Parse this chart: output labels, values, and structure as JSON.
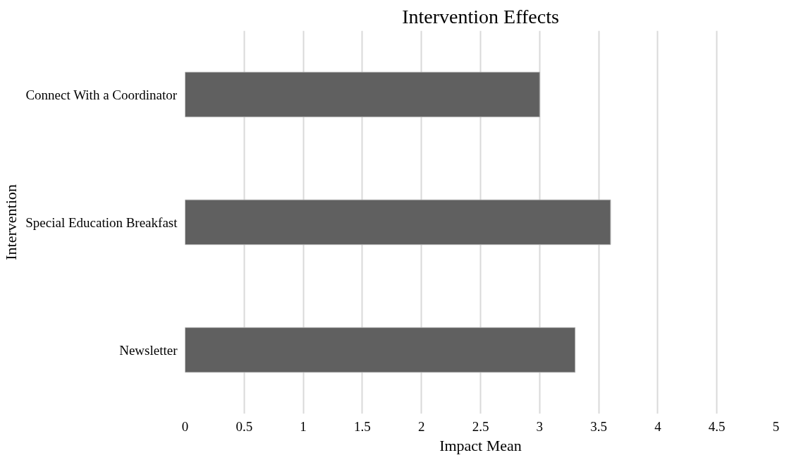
{
  "chart_data": {
    "type": "bar",
    "orientation": "horizontal",
    "title": "Intervention Effects",
    "xlabel": "Impact Mean",
    "ylabel": "Intervention",
    "categories": [
      "Connect With a Coordinator",
      "Special Education Breakfast",
      "Newsletter"
    ],
    "values": [
      3.0,
      3.6,
      3.3
    ],
    "color": "#606060",
    "xlim": [
      0,
      5
    ],
    "xticks": [
      0,
      0.5,
      1,
      1.5,
      2,
      2.5,
      3,
      3.5,
      4,
      4.5,
      5
    ],
    "grid": "x"
  }
}
